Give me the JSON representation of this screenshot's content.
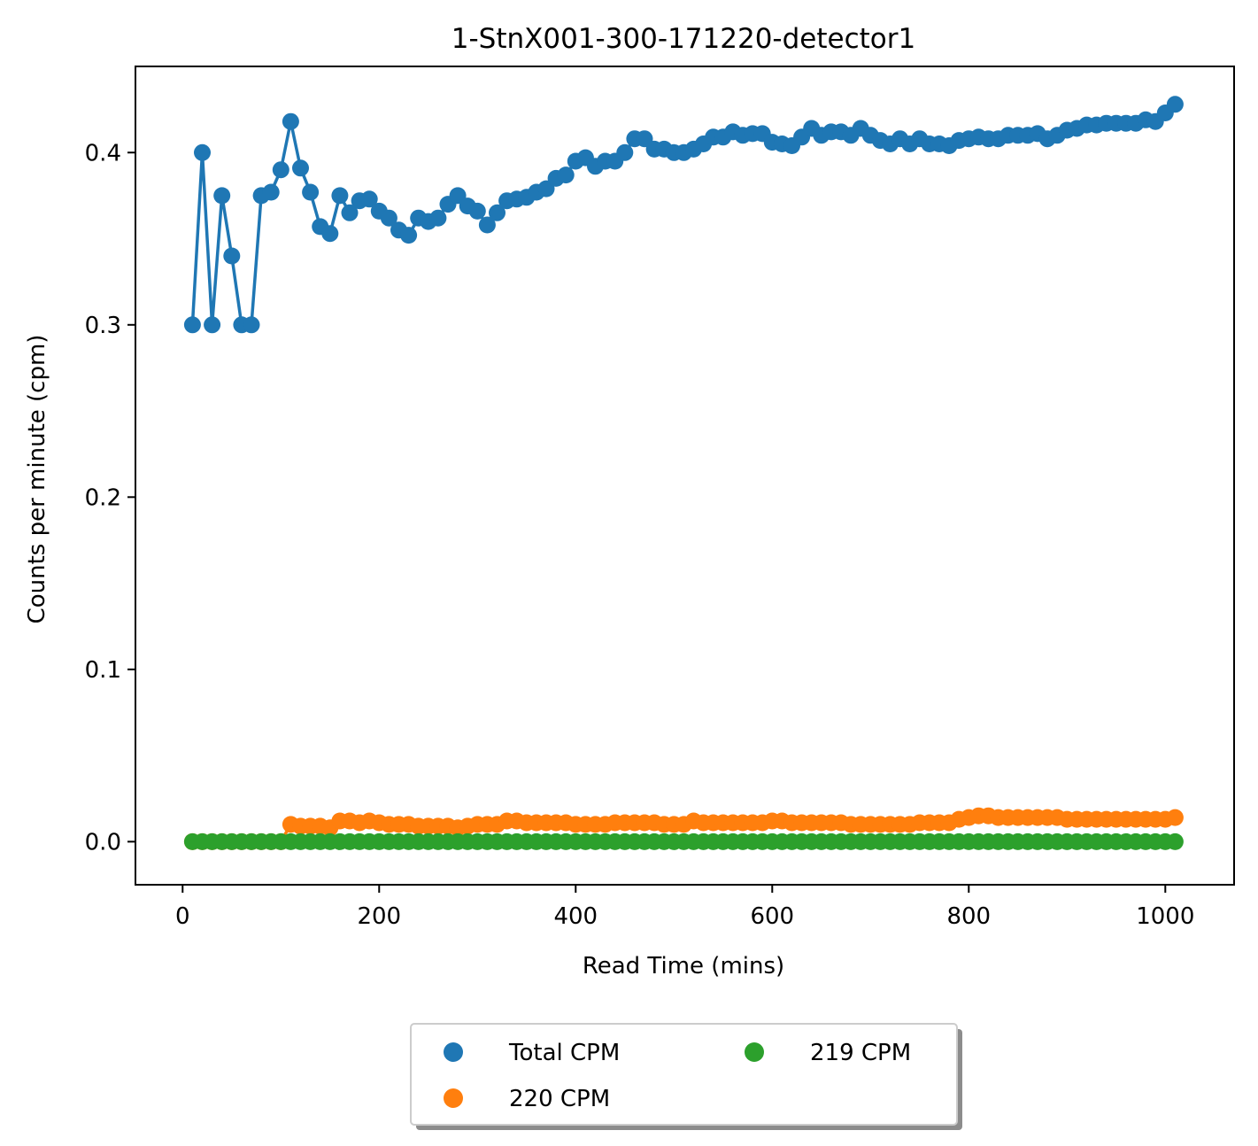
{
  "chart_data": {
    "type": "scatter",
    "title": "1-StnX001-300-171220-detector1",
    "xlabel": "Read Time (mins)",
    "ylabel": "Counts per minute (cpm)",
    "xlim": [
      -48,
      1070
    ],
    "ylim": [
      -0.025,
      0.45
    ],
    "xticks": [
      0,
      200,
      400,
      600,
      800,
      1000
    ],
    "yticks": [
      0.0,
      0.1,
      0.2,
      0.3,
      0.4
    ],
    "xtick_labels": [
      "0",
      "200",
      "400",
      "600",
      "800",
      "1000"
    ],
    "ytick_labels": [
      "0.0",
      "0.1",
      "0.2",
      "0.3",
      "0.4"
    ],
    "grid": false,
    "legend_position": "bottom-center",
    "legend_columns": 2,
    "x": [
      10,
      20,
      30,
      40,
      50,
      60,
      70,
      80,
      90,
      100,
      110,
      120,
      130,
      140,
      150,
      160,
      170,
      180,
      190,
      200,
      210,
      220,
      230,
      240,
      250,
      260,
      270,
      280,
      290,
      300,
      310,
      320,
      330,
      340,
      350,
      360,
      370,
      380,
      390,
      400,
      410,
      420,
      430,
      440,
      450,
      460,
      470,
      480,
      490,
      500,
      510,
      520,
      530,
      540,
      550,
      560,
      570,
      580,
      590,
      600,
      610,
      620,
      630,
      640,
      650,
      660,
      670,
      680,
      690,
      700,
      710,
      720,
      730,
      740,
      750,
      760,
      770,
      780,
      790,
      800,
      810,
      820,
      830,
      840,
      850,
      860,
      870,
      880,
      890,
      900,
      910,
      920,
      930,
      940,
      950,
      960,
      970,
      980,
      990,
      1000,
      1010
    ],
    "series": [
      {
        "name": "Total CPM",
        "color": "#1f77b4",
        "style": "line+marker",
        "values": [
          0.3,
          0.4,
          0.3,
          0.375,
          0.34,
          0.3,
          0.3,
          0.375,
          0.377,
          0.39,
          0.418,
          0.391,
          0.377,
          0.357,
          0.353,
          0.375,
          0.365,
          0.372,
          0.373,
          0.366,
          0.362,
          0.355,
          0.352,
          0.362,
          0.36,
          0.362,
          0.37,
          0.375,
          0.369,
          0.366,
          0.358,
          0.365,
          0.372,
          0.373,
          0.374,
          0.377,
          0.379,
          0.385,
          0.387,
          0.395,
          0.397,
          0.392,
          0.395,
          0.395,
          0.4,
          0.408,
          0.408,
          0.402,
          0.402,
          0.4,
          0.4,
          0.402,
          0.405,
          0.409,
          0.409,
          0.412,
          0.41,
          0.411,
          0.411,
          0.406,
          0.405,
          0.404,
          0.409,
          0.414,
          0.41,
          0.412,
          0.412,
          0.41,
          0.414,
          0.41,
          0.407,
          0.405,
          0.408,
          0.405,
          0.408,
          0.405,
          0.405,
          0.404,
          0.407,
          0.408,
          0.409,
          0.408,
          0.408,
          0.41,
          0.41,
          0.41,
          0.411,
          0.408,
          0.41,
          0.413,
          0.414,
          0.416,
          0.416,
          0.417,
          0.417,
          0.417,
          0.417,
          0.419,
          0.418,
          0.423,
          0.428
        ]
      },
      {
        "name": "220 CPM",
        "color": "#ff7f0e",
        "style": "line+marker",
        "values": [
          0,
          0,
          0,
          0,
          0,
          0,
          0,
          0,
          0,
          0,
          0.01,
          0.009,
          0.009,
          0.009,
          0.008,
          0.012,
          0.012,
          0.011,
          0.012,
          0.011,
          0.01,
          0.01,
          0.01,
          0.009,
          0.009,
          0.009,
          0.009,
          0.008,
          0.009,
          0.01,
          0.01,
          0.01,
          0.012,
          0.012,
          0.011,
          0.011,
          0.011,
          0.011,
          0.011,
          0.01,
          0.01,
          0.01,
          0.01,
          0.011,
          0.011,
          0.011,
          0.011,
          0.011,
          0.01,
          0.01,
          0.01,
          0.012,
          0.011,
          0.011,
          0.011,
          0.011,
          0.011,
          0.011,
          0.011,
          0.012,
          0.012,
          0.011,
          0.011,
          0.011,
          0.011,
          0.011,
          0.011,
          0.01,
          0.01,
          0.01,
          0.01,
          0.01,
          0.01,
          0.01,
          0.011,
          0.011,
          0.011,
          0.011,
          0.013,
          0.014,
          0.015,
          0.015,
          0.014,
          0.014,
          0.014,
          0.014,
          0.014,
          0.014,
          0.014,
          0.013,
          0.013,
          0.013,
          0.013,
          0.013,
          0.013,
          0.013,
          0.013,
          0.013,
          0.013,
          0.013,
          0.014
        ]
      },
      {
        "name": "219 CPM",
        "color": "#2ca02c",
        "style": "line+marker",
        "values": [
          0,
          0,
          0,
          0,
          0,
          0,
          0,
          0,
          0,
          0,
          0,
          0,
          0,
          0,
          0,
          0,
          0,
          0,
          0,
          0,
          0,
          0,
          0,
          0,
          0,
          0,
          0,
          0,
          0,
          0,
          0,
          0,
          0,
          0,
          0,
          0,
          0,
          0,
          0,
          0,
          0,
          0,
          0,
          0,
          0,
          0,
          0,
          0,
          0,
          0,
          0,
          0,
          0,
          0,
          0,
          0,
          0,
          0,
          0,
          0,
          0,
          0,
          0,
          0,
          0,
          0,
          0,
          0,
          0,
          0,
          0,
          0,
          0,
          0,
          0,
          0,
          0,
          0,
          0,
          0,
          0,
          0,
          0,
          0,
          0,
          0,
          0,
          0,
          0,
          0,
          0,
          0,
          0,
          0,
          0,
          0,
          0,
          0,
          0,
          0,
          0
        ]
      }
    ]
  }
}
